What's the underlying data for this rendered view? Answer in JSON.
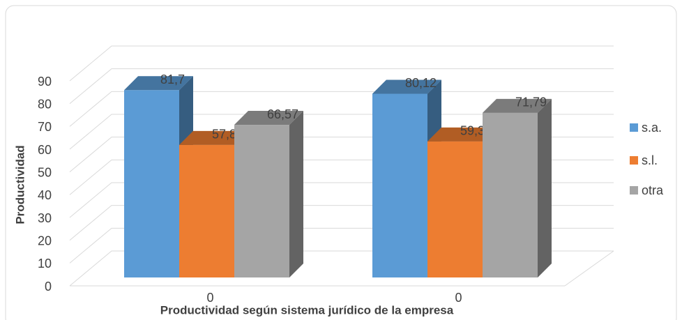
{
  "chart_data": {
    "type": "bar3d",
    "x_label": "Productividad según sistema jurídico de la empresa",
    "y_label": "Productividad",
    "categories": [
      "0",
      "0"
    ],
    "series": [
      {
        "name": "s.a.",
        "color": "#5b9bd5",
        "values": [
          81.7,
          80.12
        ],
        "value_labels": [
          "81,7",
          "80,12"
        ]
      },
      {
        "name": "s.l.",
        "color": "#ed7d31",
        "values": [
          57.82,
          59.34
        ],
        "value_labels": [
          "57,82",
          "59,34"
        ]
      },
      {
        "name": "otra",
        "color": "#a5a5a5",
        "values": [
          66.57,
          71.79
        ],
        "value_labels": [
          "66,57",
          "71,79"
        ]
      }
    ],
    "ylim": [
      0,
      90
    ],
    "yticks": [
      0,
      10,
      20,
      30,
      40,
      50,
      60,
      70,
      80,
      90
    ],
    "grid": true,
    "legend": "right"
  }
}
